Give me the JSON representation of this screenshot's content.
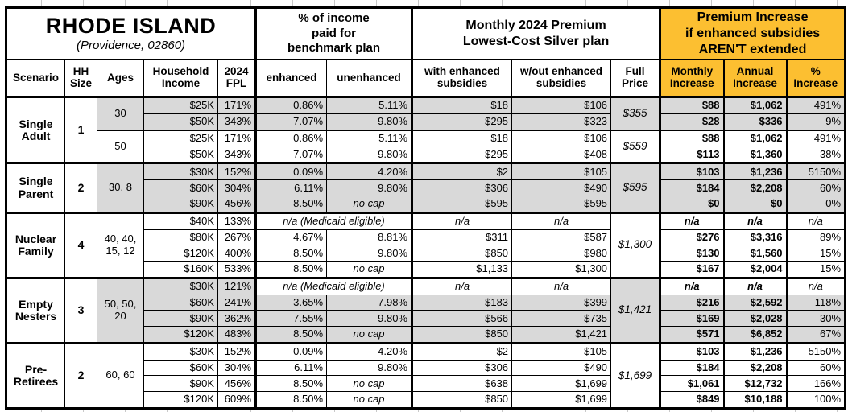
{
  "colors": {
    "accent_orange": "#FCBF31",
    "shade_gray": "#D9D9D9",
    "border_black": "#000000",
    "gridline_gray": "#C9C9C9"
  },
  "chart_data": {
    "type": "table",
    "title": "RHODE ISLAND",
    "subtitle": "(Providence, 02860)",
    "column_groups": [
      {
        "label": "% of income\npaid for\nbenchmark plan"
      },
      {
        "label": "Monthly 2024 Premium\nLowest-Cost Silver plan"
      },
      {
        "label": "Premium Increase\nif enhanced subsidies\nAREN'T extended"
      }
    ],
    "columns": [
      "Scenario",
      "HH\nSize",
      "Ages",
      "Household\nIncome",
      "2024\nFPL",
      "enhanced",
      "unenhanced",
      "with enhanced\nsubsidies",
      "w/out enhanced\nsubsidies",
      "Full\nPrice",
      "Monthly\nIncrease",
      "Annual\nIncrease",
      "%\nIncrease"
    ],
    "special_values": {
      "na": "n/a",
      "no_cap": "no cap",
      "medicaid_note": "n/a (Medicaid eligible)"
    },
    "groups": [
      {
        "scenario": "Single Adult",
        "hh_size": "1",
        "subgroups": [
          {
            "ages": "30",
            "shaded": true,
            "full_price": "$355",
            "rows": [
              {
                "income": "$25K",
                "fpl": "171%",
                "enhanced": "0.86%",
                "unenhanced": "5.11%",
                "with_subsidies": "$18",
                "without_subsidies": "$106",
                "monthly_increase": "$88",
                "annual_increase": "$1,062",
                "pct_increase": "491%"
              },
              {
                "income": "$50K",
                "fpl": "343%",
                "enhanced": "7.07%",
                "unenhanced": "9.80%",
                "with_subsidies": "$295",
                "without_subsidies": "$323",
                "monthly_increase": "$28",
                "annual_increase": "$336",
                "pct_increase": "9%"
              }
            ]
          },
          {
            "ages": "50",
            "shaded": false,
            "full_price": "$559",
            "rows": [
              {
                "income": "$25K",
                "fpl": "171%",
                "enhanced": "0.86%",
                "unenhanced": "5.11%",
                "with_subsidies": "$18",
                "without_subsidies": "$106",
                "monthly_increase": "$88",
                "annual_increase": "$1,062",
                "pct_increase": "491%"
              },
              {
                "income": "$50K",
                "fpl": "343%",
                "enhanced": "7.07%",
                "unenhanced": "9.80%",
                "with_subsidies": "$295",
                "without_subsidies": "$408",
                "monthly_increase": "$113",
                "annual_increase": "$1,360",
                "pct_increase": "38%"
              }
            ]
          }
        ]
      },
      {
        "scenario": "Single Parent",
        "hh_size": "2",
        "subgroups": [
          {
            "ages": "30, 8",
            "shaded": true,
            "full_price": "$595",
            "rows": [
              {
                "income": "$30K",
                "fpl": "152%",
                "enhanced": "0.09%",
                "unenhanced": "4.20%",
                "with_subsidies": "$2",
                "without_subsidies": "$105",
                "monthly_increase": "$103",
                "annual_increase": "$1,236",
                "pct_increase": "5150%"
              },
              {
                "income": "$60K",
                "fpl": "304%",
                "enhanced": "6.11%",
                "unenhanced": "9.80%",
                "with_subsidies": "$306",
                "without_subsidies": "$490",
                "monthly_increase": "$184",
                "annual_increase": "$2,208",
                "pct_increase": "60%"
              },
              {
                "income": "$90K",
                "fpl": "456%",
                "enhanced": "8.50%",
                "unenhanced": "no cap",
                "with_subsidies": "$595",
                "without_subsidies": "$595",
                "monthly_increase": "$0",
                "annual_increase": "$0",
                "pct_increase": "0%"
              }
            ]
          }
        ]
      },
      {
        "scenario": "Nuclear Family",
        "hh_size": "4",
        "subgroups": [
          {
            "ages": "40, 40, 15, 12",
            "shaded": false,
            "full_price": "$1,300",
            "rows": [
              {
                "income": "$40K",
                "fpl": "133%",
                "medicaid": true
              },
              {
                "income": "$80K",
                "fpl": "267%",
                "enhanced": "4.67%",
                "unenhanced": "8.81%",
                "with_subsidies": "$311",
                "without_subsidies": "$587",
                "monthly_increase": "$276",
                "annual_increase": "$3,316",
                "pct_increase": "89%"
              },
              {
                "income": "$120K",
                "fpl": "400%",
                "enhanced": "8.50%",
                "unenhanced": "9.80%",
                "with_subsidies": "$850",
                "without_subsidies": "$980",
                "monthly_increase": "$130",
                "annual_increase": "$1,560",
                "pct_increase": "15%"
              },
              {
                "income": "$160K",
                "fpl": "533%",
                "enhanced": "8.50%",
                "unenhanced": "no cap",
                "with_subsidies": "$1,133",
                "without_subsidies": "$1,300",
                "monthly_increase": "$167",
                "annual_increase": "$2,004",
                "pct_increase": "15%"
              }
            ]
          }
        ]
      },
      {
        "scenario": "Empty Nesters",
        "hh_size": "3",
        "subgroups": [
          {
            "ages": "50, 50, 20",
            "shaded": true,
            "full_price": "$1,421",
            "rows": [
              {
                "income": "$30K",
                "fpl": "121%",
                "medicaid": true
              },
              {
                "income": "$60K",
                "fpl": "241%",
                "enhanced": "3.65%",
                "unenhanced": "7.98%",
                "with_subsidies": "$183",
                "without_subsidies": "$399",
                "monthly_increase": "$216",
                "annual_increase": "$2,592",
                "pct_increase": "118%"
              },
              {
                "income": "$90K",
                "fpl": "362%",
                "enhanced": "7.55%",
                "unenhanced": "9.80%",
                "with_subsidies": "$566",
                "without_subsidies": "$735",
                "monthly_increase": "$169",
                "annual_increase": "$2,028",
                "pct_increase": "30%"
              },
              {
                "income": "$120K",
                "fpl": "483%",
                "enhanced": "8.50%",
                "unenhanced": "no cap",
                "with_subsidies": "$850",
                "without_subsidies": "$1,421",
                "monthly_increase": "$571",
                "annual_increase": "$6,852",
                "pct_increase": "67%"
              }
            ]
          }
        ]
      },
      {
        "scenario": "Pre-Retirees",
        "hh_size": "2",
        "subgroups": [
          {
            "ages": "60, 60",
            "shaded": false,
            "full_price": "$1,699",
            "rows": [
              {
                "income": "$30K",
                "fpl": "152%",
                "enhanced": "0.09%",
                "unenhanced": "4.20%",
                "with_subsidies": "$2",
                "without_subsidies": "$105",
                "monthly_increase": "$103",
                "annual_increase": "$1,236",
                "pct_increase": "5150%"
              },
              {
                "income": "$60K",
                "fpl": "304%",
                "enhanced": "6.11%",
                "unenhanced": "9.80%",
                "with_subsidies": "$306",
                "without_subsidies": "$490",
                "monthly_increase": "$184",
                "annual_increase": "$2,208",
                "pct_increase": "60%"
              },
              {
                "income": "$90K",
                "fpl": "456%",
                "enhanced": "8.50%",
                "unenhanced": "no cap",
                "with_subsidies": "$638",
                "without_subsidies": "$1,699",
                "monthly_increase": "$1,061",
                "annual_increase": "$12,732",
                "pct_increase": "166%"
              },
              {
                "income": "$120K",
                "fpl": "609%",
                "enhanced": "8.50%",
                "unenhanced": "no cap",
                "with_subsidies": "$850",
                "without_subsidies": "$1,699",
                "monthly_increase": "$849",
                "annual_increase": "$10,188",
                "pct_increase": "100%"
              }
            ]
          }
        ]
      }
    ]
  }
}
